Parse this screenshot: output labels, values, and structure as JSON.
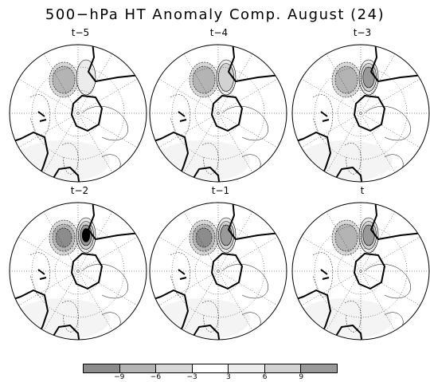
{
  "title": "500−hPa HT Anomaly Comp. August (24)",
  "panels": [
    {
      "label": "t−5",
      "anomaly_centers": [
        {
          "sign": "neg",
          "level": 2
        },
        {
          "sign": "pos",
          "level": 1
        }
      ]
    },
    {
      "label": "t−4",
      "anomaly_centers": [
        {
          "sign": "neg",
          "level": 2
        },
        {
          "sign": "pos",
          "level": 2
        }
      ]
    },
    {
      "label": "t−3",
      "anomaly_centers": [
        {
          "sign": "neg",
          "level": 2
        },
        {
          "sign": "pos",
          "level": 3
        }
      ]
    },
    {
      "label": "t−2",
      "anomaly_centers": [
        {
          "sign": "neg",
          "level": 3
        },
        {
          "sign": "pos",
          "level": 4
        }
      ]
    },
    {
      "label": "t−1",
      "anomaly_centers": [
        {
          "sign": "neg",
          "level": 3
        },
        {
          "sign": "pos",
          "level": 3
        }
      ]
    },
    {
      "label": "t",
      "anomaly_centers": [
        {
          "sign": "neg",
          "level": 2
        },
        {
          "sign": "pos",
          "level": 3
        }
      ]
    }
  ],
  "colorbar": {
    "ticks": [
      "−9",
      "−6",
      "−3",
      "3",
      "6",
      "9"
    ],
    "colors": [
      "#8c8c8c",
      "#b4b4b4",
      "#d7d7d7",
      "#ffffff",
      "#ececec",
      "#d2d2d2",
      "#9a9a9a"
    ]
  }
}
